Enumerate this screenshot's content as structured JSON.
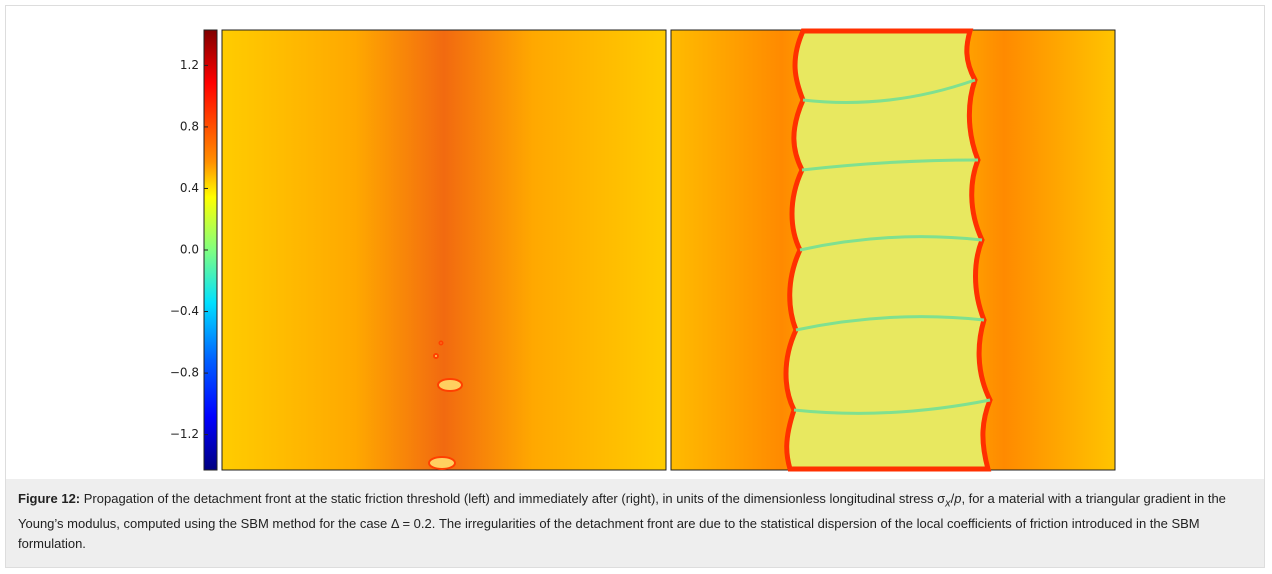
{
  "figure": {
    "colorbar": {
      "clim": [
        -1.43,
        1.43
      ],
      "ticks": [
        1.2,
        0.8,
        0.4,
        {
          "value": 0,
          "label": "0.0"
        },
        {
          "value": -0.4,
          "label": "−0.4"
        },
        {
          "value": -0.8,
          "label": "−0.8"
        },
        {
          "value": -1.2,
          "label": "−1.2"
        }
      ]
    },
    "caption": {
      "label": "Figure 12:",
      "text_1": "Propagation of the detachment front at the static friction threshold (left) and immediately after (right), in units of the dimensionless longitudinal stress σ",
      "subscript": "x",
      "slash": "/",
      "italic": "p",
      "text_2": ", for a material with a triangular gradient in the Young’s modulus, computed using the SBM method for the case Δ = 0.2. The irregularities of the detachment front are due to the statistical dispersion of the local coefficients of friction introduced in the SBM formulation."
    }
  }
}
